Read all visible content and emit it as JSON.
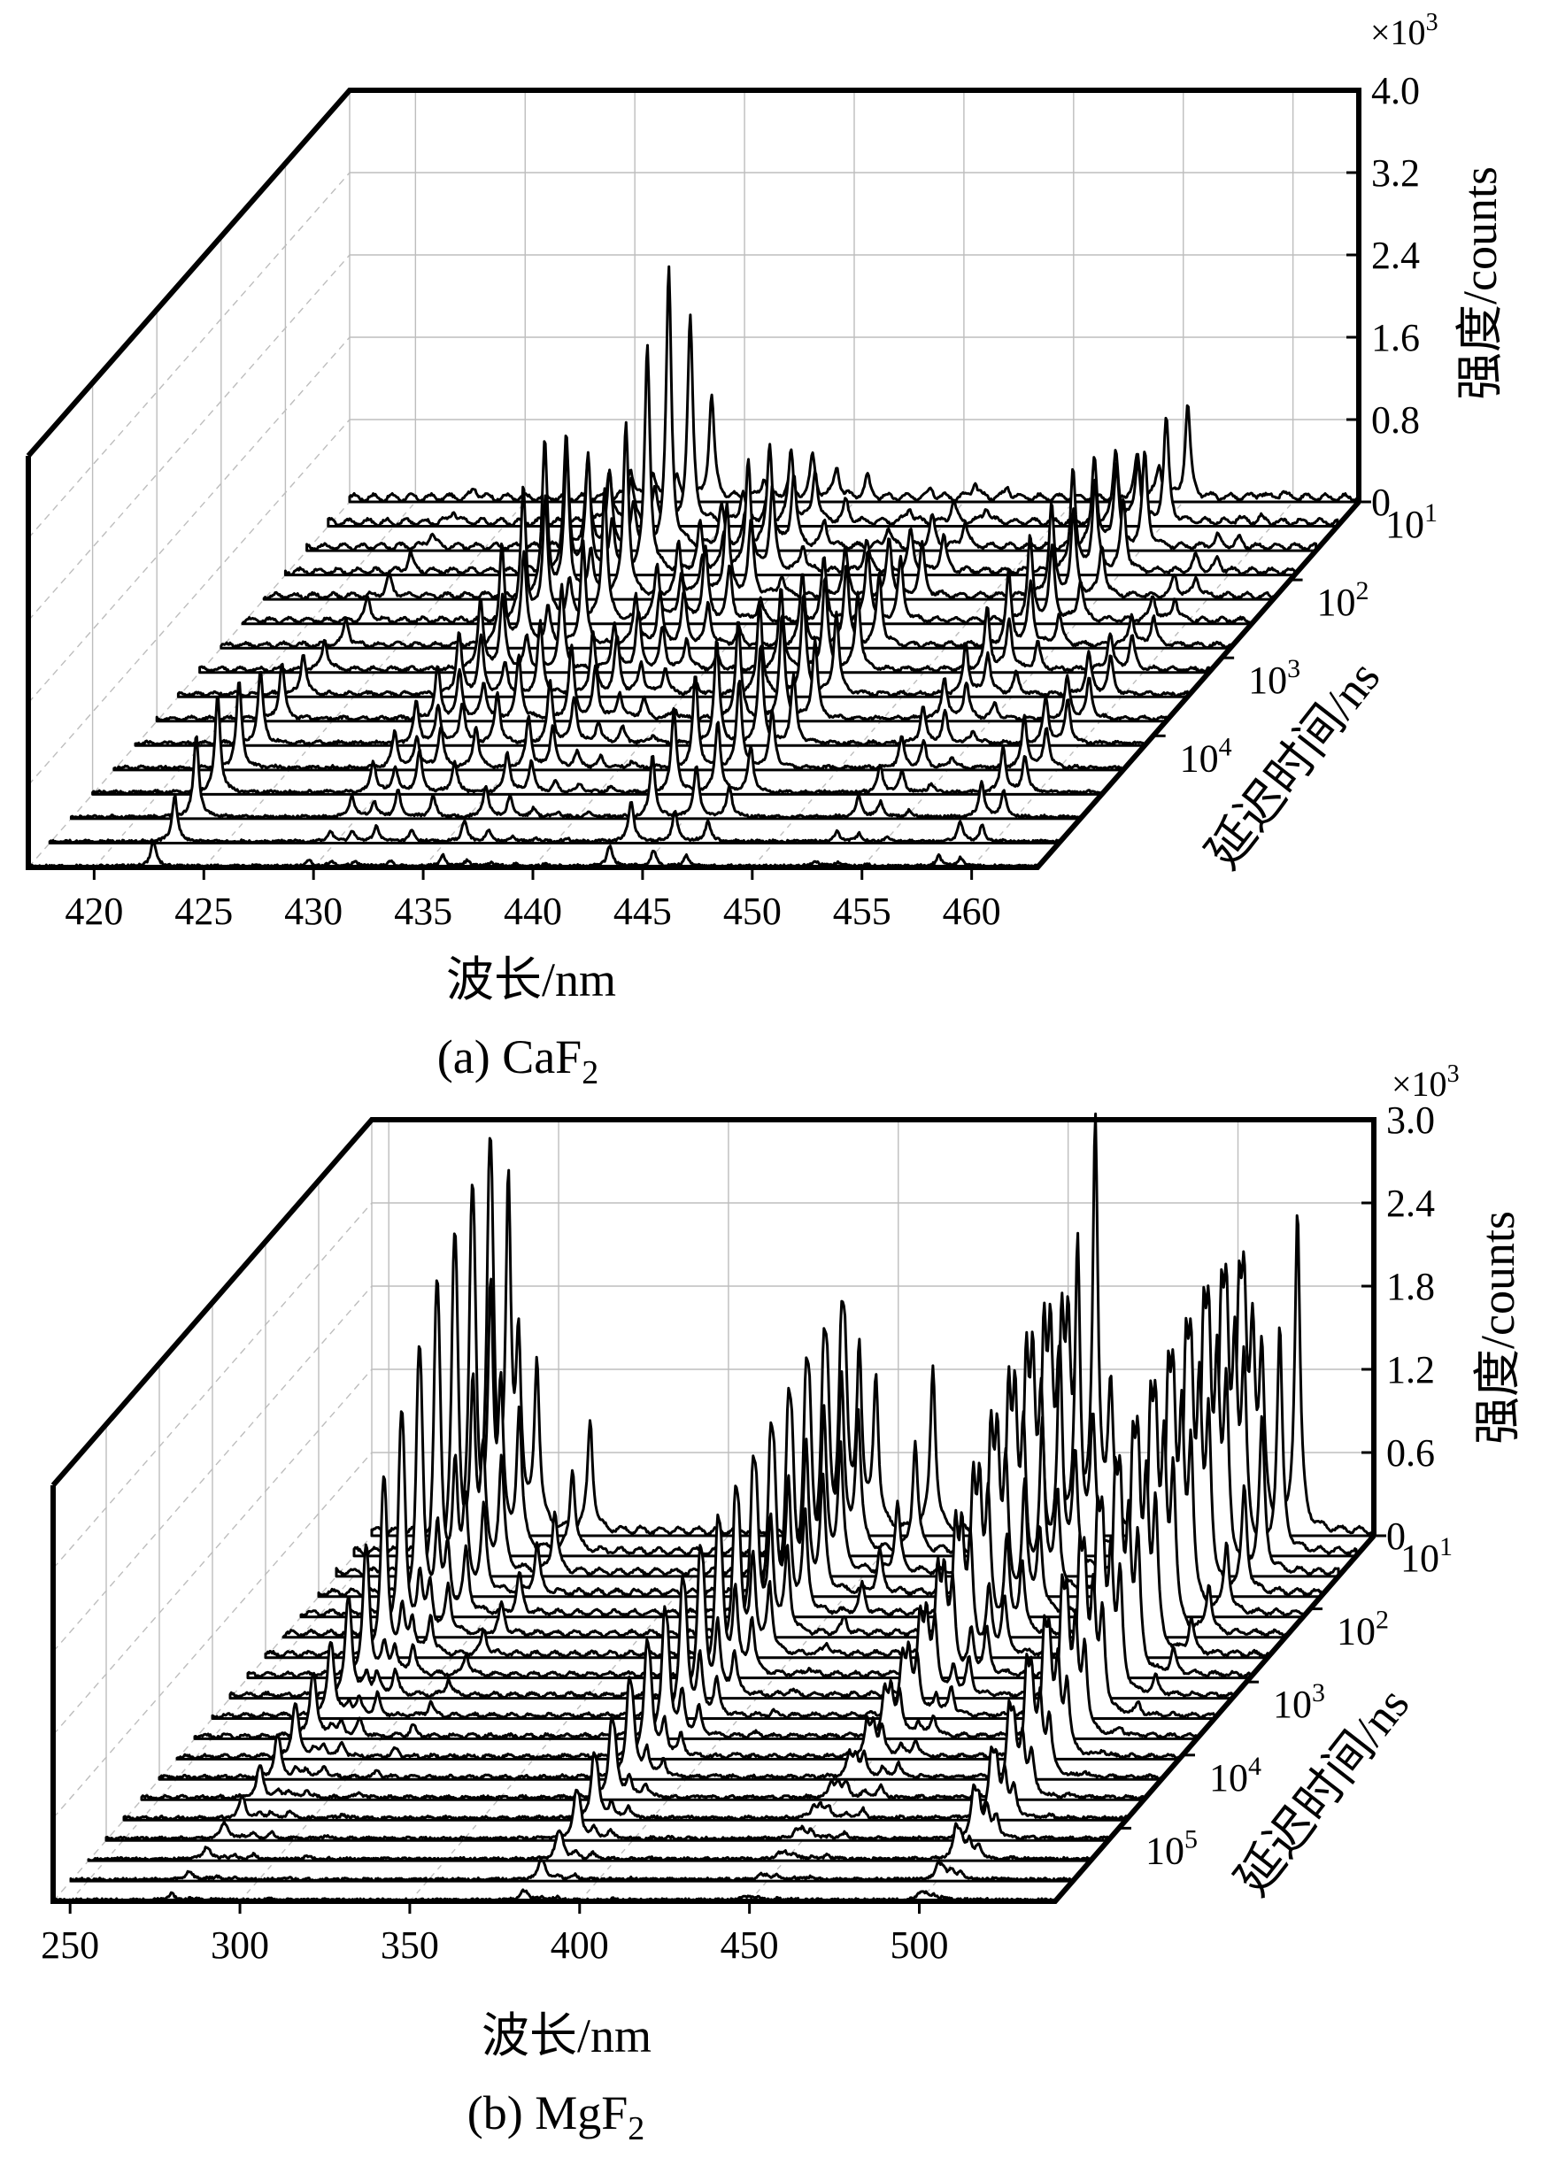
{
  "chart_data": [
    {
      "type": "line",
      "subtype": "3d-waterfall",
      "caption": "(a) CaF₂",
      "caption_text": "(a) CaF",
      "caption_sub": "2",
      "xlabel": "波长/nm",
      "ylabel": "延迟时间/ns",
      "zlabel": "强度/counts",
      "z_multiplier": "×10",
      "z_multiplier_exp": "3",
      "xlim": [
        417,
        463
      ],
      "x_ticks": [
        420,
        425,
        430,
        435,
        440,
        445,
        450,
        455,
        460
      ],
      "z_ticks": [
        "4.0",
        "3.2",
        "2.4",
        "1.6",
        "0.8",
        "0"
      ],
      "zlim": [
        0,
        4.0
      ],
      "y_ticks": [
        {
          "base": "10",
          "exp": "1"
        },
        {
          "base": "10",
          "exp": "2"
        },
        {
          "base": "10",
          "exp": "3"
        },
        {
          "base": "10",
          "exp": "4"
        }
      ],
      "y_tick_traces": [
        0,
        3.2,
        6.4,
        9.6
      ],
      "grid": true,
      "n_traces": 16,
      "peaks": [
        {
          "x": 422.7,
          "heights": [
            0.1,
            0.12,
            0.15,
            0.17,
            0.2,
            0.22,
            0.25,
            0.3,
            0.4,
            0.55,
            0.7,
            0.85,
            0.95,
            0.8,
            0.45,
            0.25
          ]
        },
        {
          "x": 429.8,
          "heights": [
            0.3,
            0.5,
            0.8,
            1.3,
            1.5,
            1.3,
            1.0,
            0.7,
            0.6,
            0.5,
            0.4,
            0.35,
            0.3,
            0.2,
            0.1,
            0.05
          ]
        },
        {
          "x": 430.8,
          "heights": [
            0.25,
            0.4,
            0.7,
            1.1,
            1.4,
            1.2,
            0.9,
            0.7,
            0.55,
            0.45,
            0.35,
            0.3,
            0.25,
            0.15,
            0.1,
            0.05
          ]
        },
        {
          "x": 431.9,
          "heights": [
            0.2,
            0.3,
            0.4,
            0.5,
            0.45,
            0.4,
            0.35,
            0.3,
            0.3,
            0.35,
            0.4,
            0.4,
            0.4,
            0.25,
            0.15,
            0.05
          ]
        },
        {
          "x": 433.5,
          "heights": [
            1.0,
            2.0,
            2.7,
            2.2,
            1.7,
            1.3,
            1.0,
            0.8,
            0.7,
            0.6,
            0.5,
            0.4,
            0.3,
            0.2,
            0.1,
            0.05
          ]
        },
        {
          "x": 435.9,
          "heights": [
            0.2,
            0.3,
            0.4,
            0.45,
            0.5,
            0.55,
            0.5,
            0.45,
            0.6,
            0.7,
            0.6,
            0.5,
            0.4,
            0.3,
            0.2,
            0.1
          ]
        },
        {
          "x": 437.0,
          "heights": [
            0.15,
            0.2,
            0.3,
            0.35,
            0.4,
            0.45,
            0.5,
            0.55,
            0.55,
            0.5,
            0.45,
            0.4,
            0.3,
            0.2,
            0.1,
            0.05
          ]
        },
        {
          "x": 438.1,
          "heights": [
            0.4,
            0.7,
            1.0,
            1.1,
            0.9,
            0.7,
            0.5,
            0.4,
            0.3,
            0.25,
            0.2,
            0.15,
            0.1,
            0.08,
            0.05,
            0.03
          ]
        },
        {
          "x": 439.2,
          "heights": [
            0.3,
            0.5,
            0.7,
            0.8,
            0.7,
            0.5,
            0.4,
            0.3,
            0.25,
            0.2,
            0.15,
            0.1,
            0.08,
            0.05,
            0.03,
            0.02
          ]
        },
        {
          "x": 440.6,
          "heights": [
            0.2,
            0.2,
            0.25,
            0.25,
            0.2,
            0.2,
            0.15,
            0.12,
            0.1,
            0.1,
            0.08,
            0.06,
            0.05,
            0.04,
            0.03,
            0.02
          ]
        },
        {
          "x": 443.5,
          "heights": [
            0.1,
            0.15,
            0.2,
            0.3,
            0.45,
            0.6,
            0.7,
            0.8,
            0.9,
            0.95,
            1.0,
            0.9,
            0.8,
            0.6,
            0.4,
            0.2
          ]
        },
        {
          "x": 445.5,
          "heights": [
            0.15,
            0.2,
            0.3,
            0.4,
            0.55,
            0.7,
            0.8,
            0.9,
            0.95,
            1.0,
            0.95,
            0.85,
            0.7,
            0.5,
            0.3,
            0.15
          ]
        },
        {
          "x": 447.0,
          "heights": [
            0.1,
            0.15,
            0.25,
            0.35,
            0.5,
            0.6,
            0.7,
            0.75,
            0.8,
            0.75,
            0.65,
            0.55,
            0.45,
            0.3,
            0.2,
            0.1
          ]
        },
        {
          "x": 452.9,
          "heights": [
            0.4,
            0.7,
            0.9,
            1.0,
            0.9,
            0.8,
            0.7,
            0.6,
            0.5,
            0.4,
            0.35,
            0.3,
            0.25,
            0.2,
            0.1,
            0.05
          ]
        },
        {
          "x": 453.9,
          "heights": [
            0.3,
            0.6,
            0.8,
            0.85,
            0.8,
            0.7,
            0.6,
            0.5,
            0.4,
            0.35,
            0.3,
            0.25,
            0.2,
            0.15,
            0.08,
            0.04
          ]
        },
        {
          "x": 455.2,
          "heights": [
            0.9,
            1.0,
            0.9,
            0.7,
            0.5,
            0.4,
            0.3,
            0.25,
            0.2,
            0.15,
            0.12,
            0.1,
            0.08,
            0.06,
            0.04,
            0.02
          ]
        },
        {
          "x": 458.5,
          "heights": [
            0.05,
            0.05,
            0.1,
            0.15,
            0.2,
            0.25,
            0.3,
            0.35,
            0.4,
            0.4,
            0.45,
            0.5,
            0.45,
            0.35,
            0.2,
            0.1
          ]
        },
        {
          "x": 459.5,
          "heights": [
            0.05,
            0.05,
            0.08,
            0.12,
            0.18,
            0.22,
            0.28,
            0.32,
            0.35,
            0.38,
            0.42,
            0.4,
            0.35,
            0.25,
            0.15,
            0.08
          ]
        }
      ]
    },
    {
      "type": "line",
      "subtype": "3d-waterfall",
      "caption": "(b) MgF₂",
      "caption_text": "(b) MgF",
      "caption_sub": "2",
      "xlabel": "波长/nm",
      "ylabel": "延迟时间/ns",
      "zlabel": "强度/counts",
      "z_multiplier": "×10",
      "z_multiplier_exp": "3",
      "xlim": [
        245,
        540
      ],
      "x_ticks": [
        250,
        300,
        350,
        400,
        450,
        500
      ],
      "z_ticks": [
        "3.0",
        "2.4",
        "1.8",
        "1.2",
        "0.6",
        "0"
      ],
      "zlim": [
        0,
        3.0
      ],
      "y_ticks": [
        {
          "base": "10",
          "exp": "1"
        },
        {
          "base": "10",
          "exp": "2"
        },
        {
          "base": "10",
          "exp": "3"
        },
        {
          "base": "10",
          "exp": "4"
        },
        {
          "base": "10",
          "exp": "5"
        }
      ],
      "y_tick_traces": [
        0,
        3.6,
        7.2,
        10.8,
        14.4
      ],
      "grid": true,
      "n_traces": 19,
      "peaks": [
        {
          "x": 279.5,
          "heights": [
            1.7,
            1.6,
            1.5,
            1.4,
            1.2,
            1.0,
            0.8,
            0.6,
            0.45,
            0.35,
            0.3,
            0.25,
            0.2,
            0.15,
            0.1,
            0.08,
            0.06,
            0.04,
            0.03
          ]
        },
        {
          "x": 280.3,
          "heights": [
            1.6,
            1.5,
            1.4,
            1.3,
            1.1,
            0.9,
            0.7,
            0.5,
            0.4,
            0.3,
            0.25,
            0.2,
            0.15,
            0.12,
            0.08,
            0.06,
            0.05,
            0.03,
            0.02
          ]
        },
        {
          "x": 285.2,
          "heights": [
            2.4,
            1.8,
            1.3,
            0.9,
            0.6,
            0.4,
            0.3,
            0.2,
            0.15,
            0.1,
            0.08,
            0.06,
            0.05,
            0.04,
            0.03,
            0.02,
            0.02,
            0.01,
            0.01
          ]
        },
        {
          "x": 288.2,
          "heights": [
            1.3,
            1.1,
            0.8,
            0.6,
            0.45,
            0.35,
            0.25,
            0.2,
            0.15,
            0.12,
            0.1,
            0.08,
            0.06,
            0.05,
            0.04,
            0.03,
            0.02,
            0.02,
            0.01
          ]
        },
        {
          "x": 293.6,
          "heights": [
            1.2,
            1.0,
            0.8,
            0.6,
            0.45,
            0.35,
            0.28,
            0.22,
            0.18,
            0.15,
            0.12,
            0.1,
            0.08,
            0.06,
            0.05,
            0.04,
            0.03,
            0.02,
            0.01
          ]
        },
        {
          "x": 309.3,
          "heights": [
            0.8,
            0.6,
            0.45,
            0.35,
            0.28,
            0.22,
            0.18,
            0.15,
            0.12,
            0.1,
            0.08,
            0.06,
            0.05,
            0.04,
            0.03,
            0.02,
            0.02,
            0.01,
            0.01
          ]
        },
        {
          "x": 383.2,
          "heights": [
            1.2,
            1.15,
            1.1,
            1.05,
            1.0,
            0.95,
            0.9,
            0.85,
            0.8,
            0.75,
            0.7,
            0.65,
            0.55,
            0.45,
            0.35,
            0.25,
            0.15,
            0.1,
            0.05
          ]
        },
        {
          "x": 384.3,
          "heights": [
            1.0,
            0.95,
            0.9,
            0.85,
            0.8,
            0.75,
            0.7,
            0.65,
            0.6,
            0.55,
            0.5,
            0.45,
            0.4,
            0.3,
            0.25,
            0.2,
            0.12,
            0.08,
            0.04
          ]
        },
        {
          "x": 388.5,
          "heights": [
            1.3,
            1.2,
            1.1,
            1.0,
            0.9,
            0.8,
            0.7,
            0.6,
            0.5,
            0.4,
            0.3,
            0.25,
            0.2,
            0.15,
            0.1,
            0.08,
            0.05,
            0.03,
            0.02
          ]
        },
        {
          "x": 393.4,
          "heights": [
            1.1,
            1.0,
            0.9,
            0.8,
            0.7,
            0.6,
            0.5,
            0.4,
            0.3,
            0.25,
            0.2,
            0.15,
            0.12,
            0.1,
            0.08,
            0.06,
            0.04,
            0.03,
            0.02
          ]
        },
        {
          "x": 410.2,
          "heights": [
            1.2,
            0.8,
            0.5,
            0.3,
            0.2,
            0.12,
            0.08,
            0.05,
            0.04,
            0.03,
            0.02,
            0.02,
            0.01,
            0.01,
            0.01,
            0.01,
            0.01,
            0.01,
            0.01
          ]
        },
        {
          "x": 448.1,
          "heights": [
            1.4,
            1.5,
            1.45,
            1.35,
            1.2,
            1.0,
            0.85,
            0.7,
            0.55,
            0.4,
            0.3,
            0.22,
            0.15,
            0.1,
            0.08,
            0.06,
            0.04,
            0.03,
            0.02
          ]
        },
        {
          "x": 450.0,
          "heights": [
            1.3,
            1.35,
            1.3,
            1.2,
            1.1,
            0.95,
            0.8,
            0.65,
            0.5,
            0.4,
            0.3,
            0.22,
            0.15,
            0.1,
            0.08,
            0.06,
            0.04,
            0.03,
            0.02
          ]
        },
        {
          "x": 452.5,
          "heights": [
            1.1,
            1.2,
            1.15,
            1.1,
            1.0,
            0.9,
            0.75,
            0.6,
            0.5,
            0.4,
            0.3,
            0.2,
            0.15,
            0.1,
            0.08,
            0.06,
            0.04,
            0.03,
            0.02
          ]
        },
        {
          "x": 458.0,
          "heights": [
            2.9,
            2.2,
            1.6,
            1.2,
            0.9,
            0.65,
            0.45,
            0.3,
            0.2,
            0.15,
            0.1,
            0.08,
            0.06,
            0.04,
            0.03,
            0.02,
            0.02,
            0.01,
            0.01
          ]
        },
        {
          "x": 462.5,
          "heights": [
            1.0,
            0.9,
            0.8,
            0.7,
            0.6,
            0.5,
            0.4,
            0.32,
            0.25,
            0.2,
            0.15,
            0.12,
            0.1,
            0.08,
            0.06,
            0.04,
            0.03,
            0.02,
            0.01
          ]
        },
        {
          "x": 500.3,
          "heights": [
            1.5,
            1.55,
            1.55,
            1.5,
            1.45,
            1.4,
            1.3,
            1.2,
            1.1,
            1.0,
            0.9,
            0.8,
            0.7,
            0.55,
            0.4,
            0.3,
            0.2,
            0.1,
            0.05
          ]
        },
        {
          "x": 501.8,
          "heights": [
            1.4,
            1.45,
            1.45,
            1.4,
            1.35,
            1.3,
            1.2,
            1.1,
            1.0,
            0.9,
            0.8,
            0.7,
            0.6,
            0.45,
            0.35,
            0.25,
            0.15,
            0.08,
            0.04
          ]
        },
        {
          "x": 504.3,
          "heights": [
            1.3,
            1.35,
            1.35,
            1.3,
            1.25,
            1.2,
            1.1,
            1.0,
            0.9,
            0.8,
            0.7,
            0.6,
            0.5,
            0.4,
            0.3,
            0.2,
            0.12,
            0.06,
            0.03
          ]
        },
        {
          "x": 507.0,
          "heights": [
            1.2,
            1.25,
            1.25,
            1.2,
            1.15,
            1.1,
            1.0,
            0.9,
            0.8,
            0.7,
            0.6,
            0.5,
            0.4,
            0.3,
            0.2,
            0.15,
            0.1,
            0.05,
            0.02
          ]
        },
        {
          "x": 517.5,
          "heights": [
            2.3,
            1.6,
            1.1,
            0.75,
            0.5,
            0.35,
            0.25,
            0.18,
            0.12,
            0.08,
            0.06,
            0.04,
            0.03,
            0.02,
            0.02,
            0.01,
            0.01,
            0.01,
            0.01
          ]
        }
      ]
    }
  ]
}
